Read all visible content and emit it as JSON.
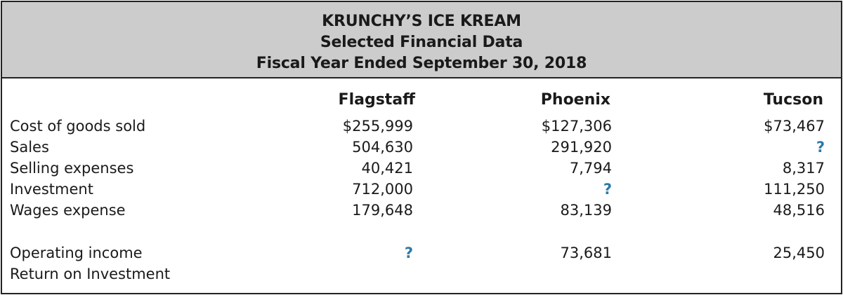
{
  "header": {
    "company": "KRUNCHY’S ICE KREAM",
    "subtitle": "Selected Financial Data",
    "period": "Fiscal Year Ended September 30, 2018"
  },
  "columns": [
    "Flagstaff",
    "Phoenix",
    "Tucson"
  ],
  "rows": [
    {
      "label": "Cost of goods sold",
      "values": [
        "$255,999",
        "$127,306",
        "$73,467"
      ]
    },
    {
      "label": "Sales",
      "values": [
        "504,630",
        "291,920",
        "?"
      ]
    },
    {
      "label": "Selling expenses",
      "values": [
        "40,421",
        "7,794",
        "8,317"
      ]
    },
    {
      "label": "Investment",
      "values": [
        "712,000",
        "?",
        "111,250"
      ]
    },
    {
      "label": "Wages expense",
      "values": [
        "179,648",
        "83,139",
        "48,516"
      ]
    },
    {
      "label": "Operating income",
      "values": [
        "?",
        "73,681",
        "25,450"
      ]
    },
    {
      "label": "Return on Investment",
      "values": [
        "",
        "",
        ""
      ]
    }
  ],
  "colors": {
    "header_bg": "#cccccc",
    "unknown_marker": "#2b7aa8",
    "border": "#222222"
  }
}
